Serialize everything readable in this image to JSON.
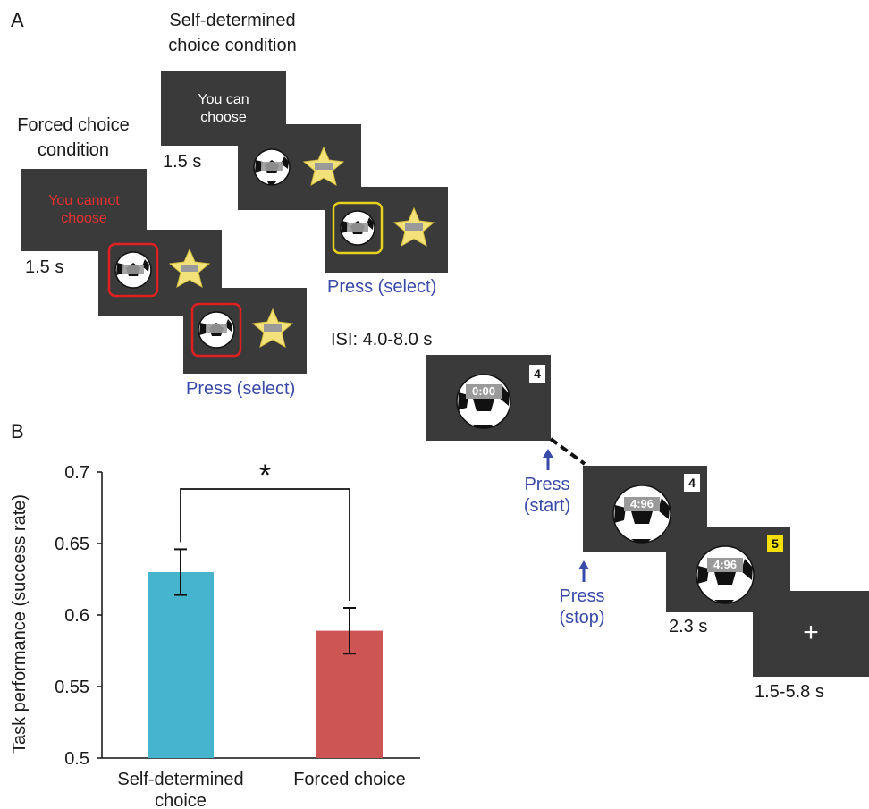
{
  "panel_a": {
    "letter": "A",
    "self_condition_label": "Self-determined\nchoice condition",
    "forced_condition_label": "Forced choice\ncondition",
    "self_cue_text": "You can\nchoose",
    "forced_cue_text": "You cannot\nchoose",
    "self_cue_duration": "1.5 s",
    "forced_cue_duration": "1.5 s",
    "press_select_self": "Press (select)",
    "press_select_forced": "Press (select)",
    "isi": "ISI: 4.0-8.0 s",
    "counter_first": "4",
    "counter_second": "4",
    "counter_third": "5",
    "timer_start": "0:00",
    "timer_stop": "4:96",
    "timer_result": "4:96",
    "press_start": "Press\n(start)",
    "press_stop": "Press\n(stop)",
    "feedback_duration": "2.3 s",
    "fixation_symbol": "+",
    "fixation_duration": "1.5-5.8 s",
    "colors": {
      "screen": "#3a3a3a",
      "forced_highlight": "#e02020",
      "self_highlight": "#e6d21a",
      "press_text": "#3a4aa8",
      "star": "#f3e27a",
      "result_highlight": "#f5e000"
    }
  },
  "panel_b": {
    "letter": "B",
    "chart_data": {
      "type": "bar",
      "categories": [
        "Self-determined\nchoice",
        "Forced choice"
      ],
      "values": [
        0.63,
        0.589
      ],
      "error": [
        0.016,
        0.016
      ],
      "ylabel": "Task performance (success rate)",
      "xlabel": "",
      "ylim": [
        0.5,
        0.7
      ],
      "yticks": [
        "0.5",
        "0.55",
        "0.6",
        "0.65",
        "0.7"
      ],
      "significance": "*",
      "colors": [
        "#45b4cc",
        "#cd5553"
      ],
      "grid": false
    }
  }
}
